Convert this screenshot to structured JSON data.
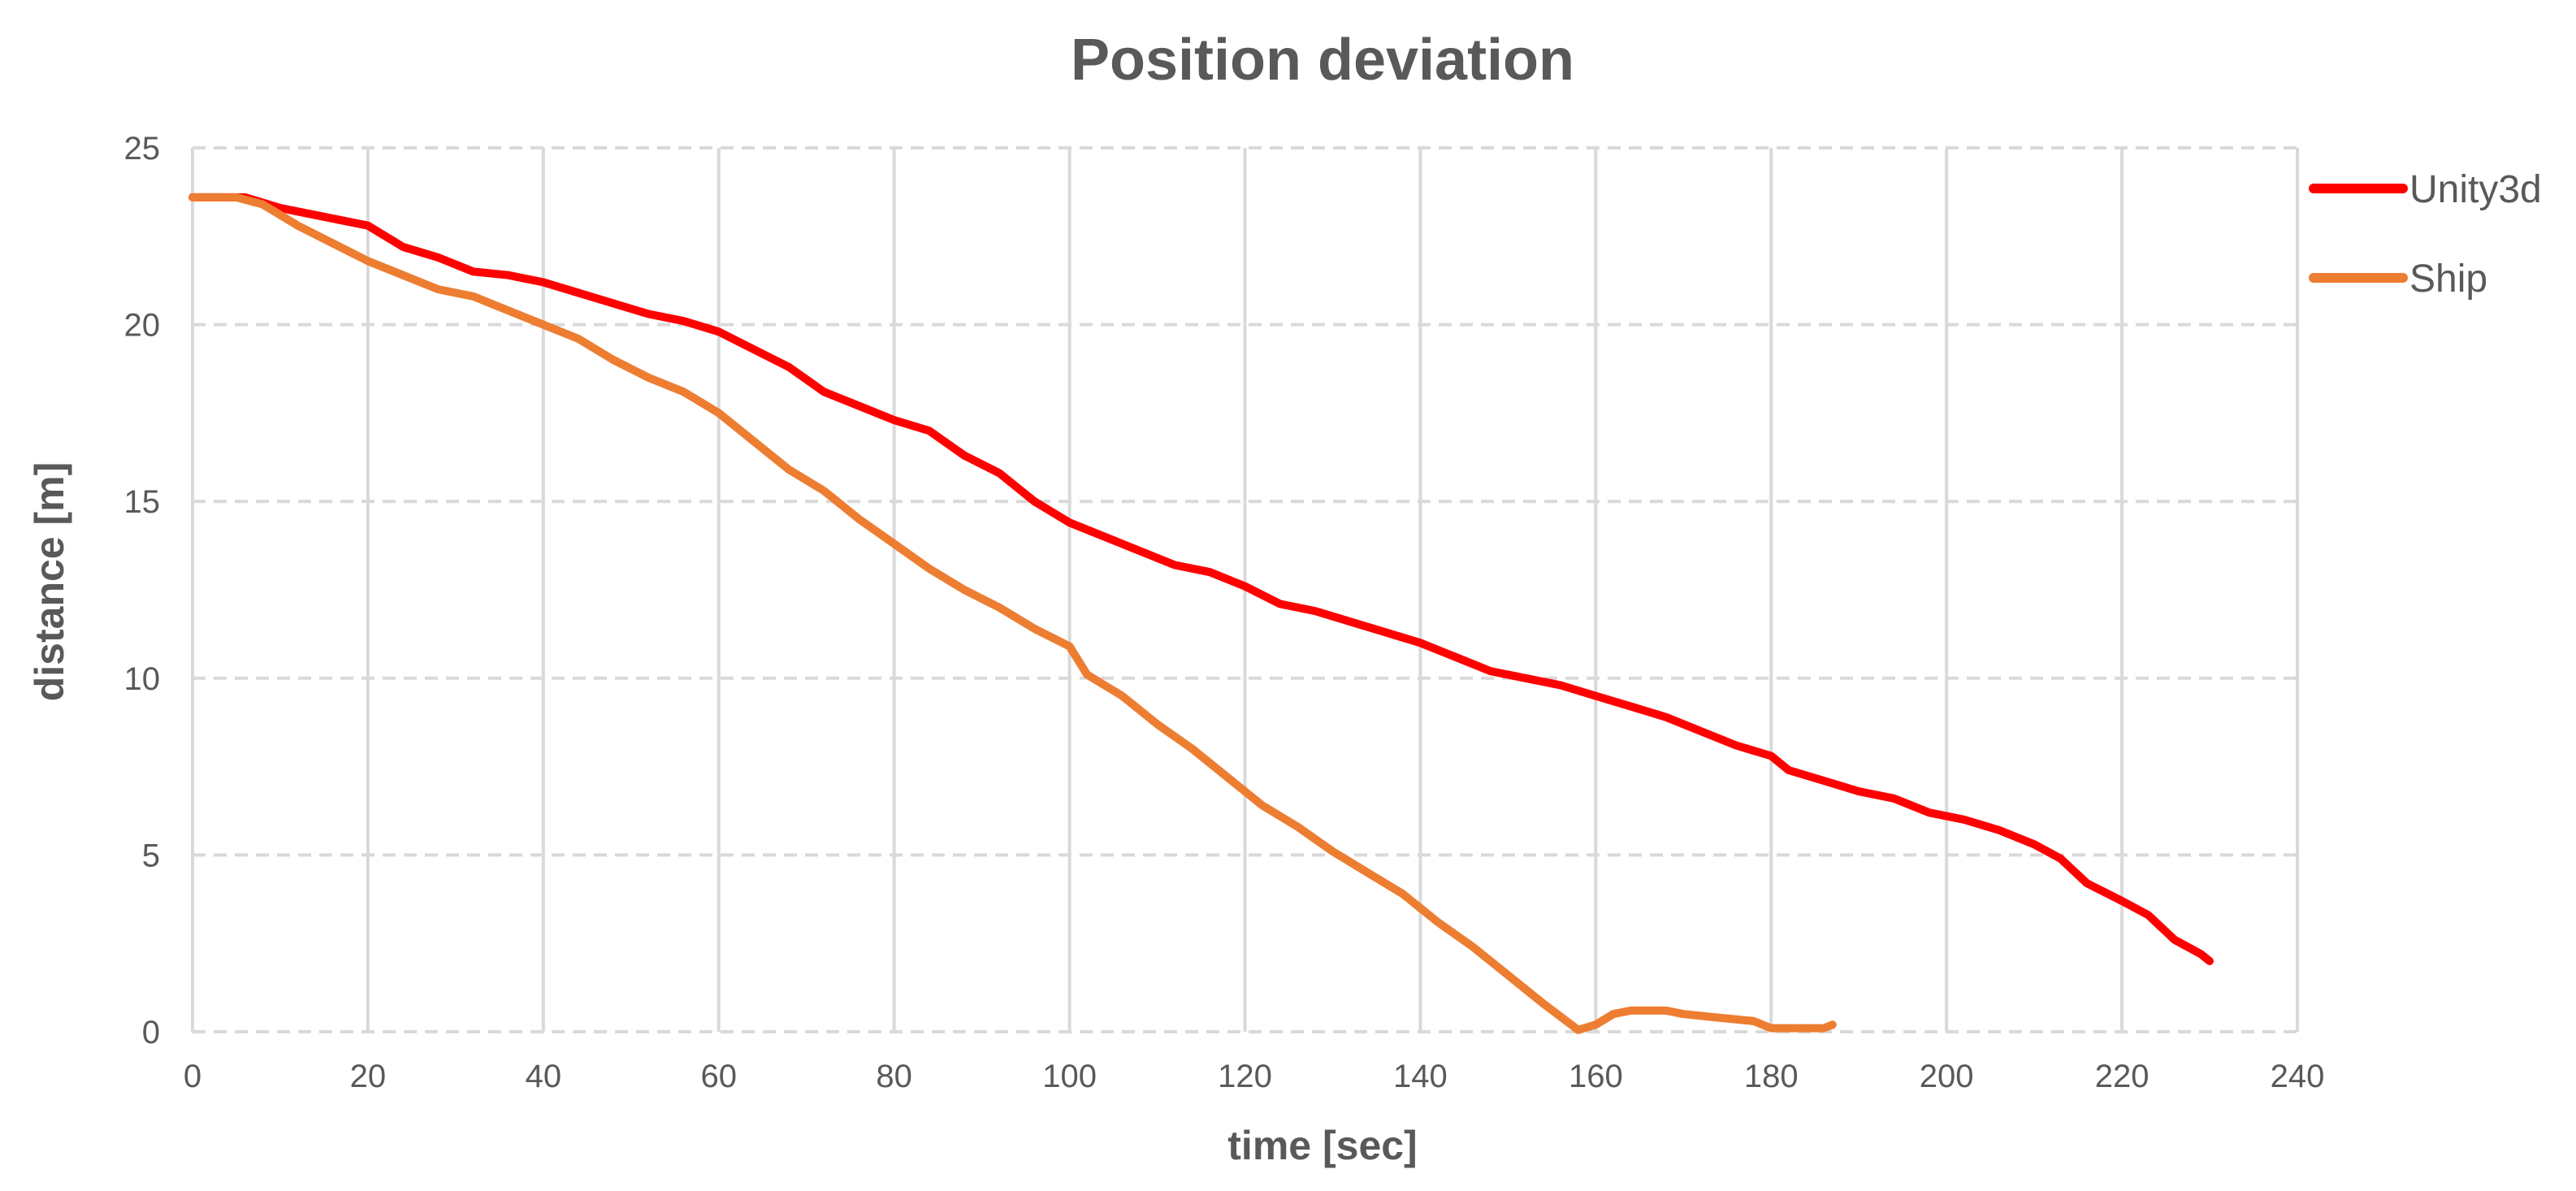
{
  "chart_data": {
    "type": "line",
    "title": "Position deviation",
    "xlabel": "time [sec]",
    "ylabel": "distance [m]",
    "xlim": [
      0,
      240
    ],
    "ylim": [
      0,
      25
    ],
    "x_ticks": [
      0,
      20,
      40,
      60,
      80,
      100,
      120,
      140,
      160,
      180,
      200,
      220,
      240
    ],
    "y_ticks": [
      0,
      5,
      10,
      15,
      20,
      25
    ],
    "grid": {
      "vertical": true,
      "horizontal": "dashed"
    },
    "legend": "right",
    "series": [
      {
        "name": "Unity3d",
        "color": "#ff0000",
        "points": [
          [
            0,
            23.6
          ],
          [
            6,
            23.6
          ],
          [
            10,
            23.3
          ],
          [
            14,
            23.1
          ],
          [
            20,
            22.8
          ],
          [
            24,
            22.2
          ],
          [
            28,
            21.9
          ],
          [
            32,
            21.5
          ],
          [
            36,
            21.4
          ],
          [
            40,
            21.2
          ],
          [
            44,
            20.9
          ],
          [
            48,
            20.6
          ],
          [
            52,
            20.3
          ],
          [
            56,
            20.1
          ],
          [
            60,
            19.8
          ],
          [
            64,
            19.3
          ],
          [
            68,
            18.8
          ],
          [
            72,
            18.1
          ],
          [
            76,
            17.7
          ],
          [
            80,
            17.3
          ],
          [
            84,
            17.0
          ],
          [
            88,
            16.3
          ],
          [
            92,
            15.8
          ],
          [
            96,
            15.0
          ],
          [
            100,
            14.4
          ],
          [
            104,
            14.0
          ],
          [
            108,
            13.6
          ],
          [
            112,
            13.2
          ],
          [
            116,
            13.0
          ],
          [
            120,
            12.6
          ],
          [
            124,
            12.1
          ],
          [
            128,
            11.9
          ],
          [
            132,
            11.6
          ],
          [
            136,
            11.3
          ],
          [
            140,
            11.0
          ],
          [
            144,
            10.6
          ],
          [
            148,
            10.2
          ],
          [
            152,
            10.0
          ],
          [
            156,
            9.8
          ],
          [
            160,
            9.5
          ],
          [
            164,
            9.2
          ],
          [
            168,
            8.9
          ],
          [
            172,
            8.5
          ],
          [
            176,
            8.1
          ],
          [
            180,
            7.8
          ],
          [
            182,
            7.4
          ],
          [
            186,
            7.1
          ],
          [
            190,
            6.8
          ],
          [
            194,
            6.6
          ],
          [
            198,
            6.2
          ],
          [
            202,
            6.0
          ],
          [
            206,
            5.7
          ],
          [
            210,
            5.3
          ],
          [
            213,
            4.9
          ],
          [
            216,
            4.2
          ],
          [
            220,
            3.7
          ],
          [
            223,
            3.3
          ],
          [
            226,
            2.6
          ],
          [
            229,
            2.2
          ],
          [
            230,
            2.0
          ]
        ]
      },
      {
        "name": "Ship",
        "color": "#ed7d31",
        "points": [
          [
            0,
            23.6
          ],
          [
            5,
            23.6
          ],
          [
            8,
            23.4
          ],
          [
            12,
            22.8
          ],
          [
            16,
            22.3
          ],
          [
            20,
            21.8
          ],
          [
            24,
            21.4
          ],
          [
            28,
            21.0
          ],
          [
            32,
            20.8
          ],
          [
            36,
            20.4
          ],
          [
            40,
            20.0
          ],
          [
            44,
            19.6
          ],
          [
            48,
            19.0
          ],
          [
            52,
            18.5
          ],
          [
            56,
            18.1
          ],
          [
            60,
            17.5
          ],
          [
            64,
            16.7
          ],
          [
            68,
            15.9
          ],
          [
            72,
            15.3
          ],
          [
            76,
            14.5
          ],
          [
            80,
            13.8
          ],
          [
            84,
            13.1
          ],
          [
            88,
            12.5
          ],
          [
            92,
            12.0
          ],
          [
            96,
            11.4
          ],
          [
            100,
            10.9
          ],
          [
            102,
            10.1
          ],
          [
            106,
            9.5
          ],
          [
            110,
            8.7
          ],
          [
            114,
            8.0
          ],
          [
            118,
            7.2
          ],
          [
            122,
            6.4
          ],
          [
            126,
            5.8
          ],
          [
            130,
            5.1
          ],
          [
            134,
            4.5
          ],
          [
            138,
            3.9
          ],
          [
            142,
            3.1
          ],
          [
            146,
            2.4
          ],
          [
            150,
            1.6
          ],
          [
            154,
            0.8
          ],
          [
            158,
            0.05
          ],
          [
            160,
            0.2
          ],
          [
            162,
            0.5
          ],
          [
            164,
            0.6
          ],
          [
            168,
            0.6
          ],
          [
            170,
            0.5
          ],
          [
            174,
            0.4
          ],
          [
            178,
            0.3
          ],
          [
            180,
            0.1
          ],
          [
            186,
            0.1
          ],
          [
            187,
            0.2
          ]
        ]
      }
    ]
  }
}
